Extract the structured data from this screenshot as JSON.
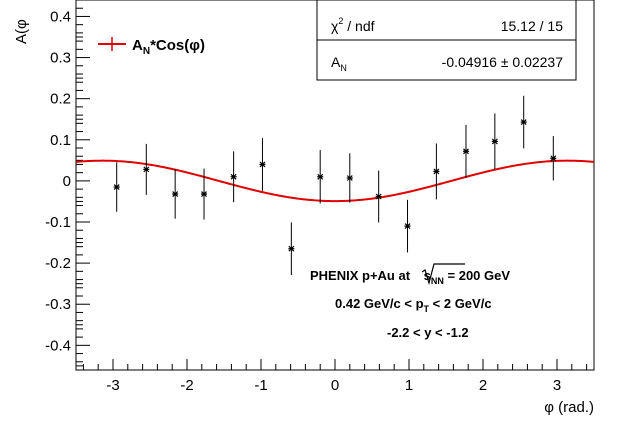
{
  "chart_data": {
    "type": "scatter",
    "title": "",
    "xlabel": "φ (rad.)",
    "ylabel": "A(φ)",
    "ylabel_visible": "A(φ",
    "xlim": [
      -3.5,
      3.5
    ],
    "ylim": [
      -0.46,
      0.44
    ],
    "x_ticks": [
      -3,
      -2,
      -1,
      0,
      1,
      2,
      3
    ],
    "x_tick_labels": [
      "-3",
      "-2",
      "-1",
      "0",
      "1",
      "2",
      "3"
    ],
    "y_ticks": [
      -0.4,
      -0.3,
      -0.2,
      -0.1,
      0,
      0.1,
      0.2,
      0.3,
      0.4
    ],
    "y_tick_labels": [
      "-0.4",
      "-0.3",
      "-0.2",
      "-0.1",
      "0",
      "0.1",
      "0.2",
      "0.3",
      "0.4"
    ],
    "grid": false,
    "series": [
      {
        "kind": "points_with_errors",
        "marker": "star",
        "color": "#000000",
        "x": [
          -2.95,
          -2.55,
          -2.16,
          -1.77,
          -1.37,
          -0.98,
          -0.59,
          -0.2,
          0.2,
          0.59,
          0.98,
          1.37,
          1.77,
          2.16,
          2.55,
          2.95
        ],
        "y": [
          -0.015,
          0.028,
          -0.032,
          -0.032,
          0.01,
          0.04,
          -0.165,
          0.01,
          0.007,
          -0.038,
          -0.11,
          0.023,
          0.072,
          0.096,
          0.143,
          0.055
        ],
        "err": [
          0.06,
          0.062,
          0.06,
          0.062,
          0.062,
          0.064,
          0.064,
          0.065,
          0.06,
          0.063,
          0.064,
          0.068,
          0.064,
          0.068,
          0.064,
          0.054
        ]
      },
      {
        "kind": "function",
        "name": "A_N*Cos(φ)",
        "color": "#e00000",
        "amplitude": -0.04916
      }
    ],
    "legend": {
      "position": "top-left",
      "entry_main": "A",
      "entry_sub": "N",
      "entry_tail": "*Cos(φ)"
    },
    "stats_box": {
      "position": "top-right",
      "row1_label_main": "χ",
      "row1_label_sup": "2",
      "row1_label_tail": " / ndf",
      "row1_value": "15.12 / 15",
      "row2_label_main": "A",
      "row2_label_sub": "N",
      "row2_value": "-0.04916 ± 0.02237"
    },
    "annotations": {
      "line1_prefix": "PHENIX p+Au at ",
      "line1_s": "s",
      "line1_s_sub": "NN",
      "line1_suffix": " = 200 GeV",
      "line2_prefix": "0.42 GeV/c < p",
      "line2_sub": "T",
      "line2_suffix": " < 2 GeV/c",
      "line3": "-2.2 < y < -1.2"
    }
  }
}
